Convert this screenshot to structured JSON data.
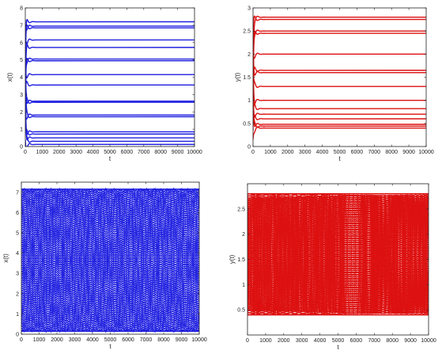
{
  "figure": {
    "panels": [
      "top-left",
      "top-right",
      "bottom-left",
      "bottom-right"
    ]
  },
  "chart_data": [
    {
      "type": "line",
      "panel": "top-left",
      "color": "#1f1fe0",
      "xlabel": "t",
      "ylabel": "x(t)",
      "xlim": [
        0,
        10000
      ],
      "ylim": [
        0,
        8
      ],
      "xticks": [
        0,
        1000,
        2000,
        3000,
        4000,
        5000,
        6000,
        7000,
        8000,
        9000,
        10000
      ],
      "yticks": [
        0,
        1,
        2,
        3,
        4,
        5,
        6,
        7,
        8
      ],
      "grid": false,
      "behavior": "converges-to-constant",
      "levels": [
        0.12,
        0.3,
        0.5,
        0.72,
        0.85,
        1.72,
        1.82,
        2.55,
        2.62,
        3.55,
        4.15,
        4.95,
        5.05,
        5.72,
        6.15,
        6.85,
        6.95,
        7.2
      ]
    },
    {
      "type": "line",
      "panel": "top-right",
      "color": "#dd1111",
      "xlabel": "t",
      "ylabel": "y(t)",
      "xlim": [
        0,
        10000
      ],
      "ylim": [
        0,
        3
      ],
      "xticks": [
        0,
        1000,
        2000,
        3000,
        4000,
        5000,
        6000,
        7000,
        8000,
        9000,
        10000
      ],
      "yticks": [
        0,
        0.5,
        1,
        1.5,
        2,
        2.5,
        3
      ],
      "grid": false,
      "behavior": "converges-to-constant",
      "levels": [
        0.4,
        0.44,
        0.48,
        0.6,
        0.7,
        0.82,
        1.0,
        1.3,
        1.6,
        1.65,
        2.0,
        2.45,
        2.5,
        2.75,
        2.8
      ]
    },
    {
      "type": "scatter",
      "panel": "bottom-left",
      "color": "#1f1fe0",
      "xlabel": "t",
      "ylabel": "x(t)",
      "xlim": [
        0,
        10000
      ],
      "ylim": [
        0,
        7.5
      ],
      "xticks": [
        0,
        1000,
        2000,
        3000,
        4000,
        5000,
        6000,
        7000,
        8000,
        9000,
        10000
      ],
      "yticks": [
        0,
        1,
        2,
        3,
        4,
        5,
        6,
        7
      ],
      "grid": false,
      "behavior": "oscillating-dotted",
      "range": [
        0.15,
        7.15
      ],
      "curves": 16,
      "period": 1000
    },
    {
      "type": "scatter",
      "panel": "bottom-right",
      "color": "#dd1111",
      "xlabel": "t",
      "ylabel": "y(t)",
      "xlim": [
        0,
        10000
      ],
      "ylim": [
        0,
        3
      ],
      "xticks": [
        0,
        1000,
        2000,
        3000,
        4000,
        5000,
        6000,
        7000,
        8000,
        9000,
        10000
      ],
      "yticks": [
        0.5,
        1,
        1.5,
        2,
        2.5
      ],
      "grid": false,
      "behavior": "oscillating-dotted",
      "range": [
        0.4,
        2.8
      ],
      "curves": 16,
      "period": 455
    }
  ]
}
